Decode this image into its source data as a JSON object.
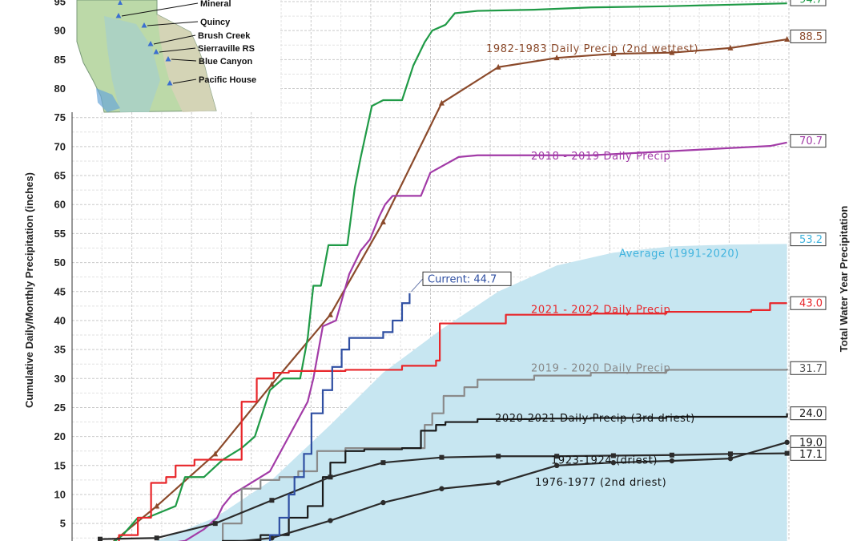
{
  "chart_data": {
    "type": "line",
    "ylabel": "Cumulative Daily/Monthly Precipitation (inches)",
    "ylabel_right": "Total Water Year Precipitation",
    "ylim": [
      2,
      95
    ],
    "xlim": [
      0,
      365
    ],
    "yticks": [
      5,
      10,
      15,
      20,
      25,
      30,
      35,
      40,
      45,
      50,
      55,
      60,
      65,
      70,
      75,
      80,
      85,
      90,
      95
    ],
    "grid": true,
    "average": {
      "label": "Average (1991-2020)",
      "end_value": "53.2",
      "color": "#c7e6f1",
      "label_color": "#3fb3de",
      "x": [
        0,
        30,
        61,
        91,
        122,
        150,
        181,
        211,
        242,
        272,
        303,
        334,
        364
      ],
      "y": [
        0,
        2,
        6,
        12.5,
        22,
        31,
        38.5,
        45,
        49.5,
        51.7,
        52.8,
        53.1,
        53.2
      ]
    },
    "current": {
      "label": "Current: 44.7",
      "value": 44.7,
      "color": "#2f4fa2"
    },
    "series": [
      {
        "name": "1982-1983 Daily Precip (2nd wettest)",
        "end_value": "88.5",
        "color": "#8b4a2b",
        "markers": "triangle",
        "x": [
          0,
          30,
          61,
          91,
          122,
          150,
          181,
          211,
          242,
          272,
          303,
          334,
          364
        ],
        "y": [
          0,
          8,
          17,
          29,
          41,
          57,
          77.5,
          83.7,
          85.3,
          86,
          86.2,
          87,
          88.5
        ]
      },
      {
        "name": "",
        "end_value": "94.7",
        "color": "#1f9a46",
        "markers": "none",
        "x": [
          0,
          12,
          20,
          25,
          40,
          45,
          50,
          55,
          65,
          75,
          82,
          90,
          97,
          106,
          110,
          113,
          117,
          121,
          131,
          135,
          138,
          144,
          150,
          160,
          166,
          172,
          176,
          183,
          188,
          200,
          230,
          260,
          300,
          364
        ],
        "y": [
          0,
          3,
          6,
          6,
          8,
          13,
          13,
          13,
          16,
          18,
          20,
          28,
          30,
          30,
          37,
          46,
          46,
          53,
          53,
          63,
          68,
          77,
          78,
          78,
          84,
          88,
          90,
          91,
          93,
          93.4,
          93.6,
          94,
          94.2,
          94.7
        ]
      },
      {
        "name": "2018 - 2019 Daily Precip",
        "end_value": "70.7",
        "color": "#a23ba7",
        "markers": "none",
        "x": [
          0,
          45,
          55,
          62,
          65,
          70,
          80,
          90,
          100,
          110,
          113,
          118,
          125,
          132,
          138,
          143,
          148,
          151,
          155,
          162,
          170,
          175,
          190,
          200,
          212,
          225,
          240,
          250,
          260,
          355,
          364
        ],
        "y": [
          0,
          2,
          4,
          6,
          8,
          10,
          12,
          14,
          20,
          26,
          30,
          39,
          40,
          48,
          52,
          54,
          58,
          60,
          61.5,
          61.5,
          61.5,
          65.5,
          68.2,
          68.5,
          68.5,
          68.5,
          68.5,
          68.5,
          68.5,
          70.1,
          70.7
        ]
      },
      {
        "name": "2021 - 2022 Daily Precip",
        "end_value": "43.0",
        "color": "#e8262a",
        "markers": "none",
        "x": [
          0,
          10,
          20,
          27,
          35,
          40,
          50,
          55,
          66,
          75,
          83,
          88,
          92,
          100,
          130,
          160,
          178,
          180,
          215,
          260,
          300,
          345,
          355,
          364
        ],
        "y": [
          0,
          3,
          6,
          12,
          13,
          15,
          16,
          16,
          16,
          26,
          30,
          30,
          31,
          31.3,
          31.5,
          32.2,
          33.1,
          39.5,
          41,
          41.2,
          41.5,
          41.8,
          43,
          43
        ],
        "step": true
      },
      {
        "name": "2019 - 2020 Daily Precip",
        "end_value": "31.7",
        "color": "#8a8a8a",
        "markers": "none",
        "x": [
          0,
          40,
          65,
          75,
          85,
          95,
          105,
          115,
          130,
          160,
          172,
          176,
          182,
          193,
          200,
          230,
          260,
          300,
          364
        ],
        "y": [
          0,
          0,
          5,
          11,
          12.5,
          13,
          14,
          17.5,
          18,
          18,
          22,
          24,
          27,
          28.5,
          29.8,
          30.5,
          31,
          31.5,
          31.7
        ],
        "step": true
      },
      {
        "name": "2020-2021 Daily Precip (3rd driest)",
        "end_value": "24.0",
        "color": "#1a1a1a",
        "markers": "none",
        "x": [
          0,
          50,
          65,
          85,
          100,
          110,
          118,
          122,
          130,
          140,
          160,
          170,
          178,
          183,
          200,
          230,
          260,
          300,
          364
        ],
        "y": [
          0,
          0,
          2,
          3,
          6,
          8,
          13,
          15.5,
          17.5,
          17.8,
          18,
          21,
          22,
          22.5,
          23,
          23.1,
          23.2,
          23.4,
          24
        ],
        "step": true
      },
      {
        "name": "1923-1924 (driest)",
        "end_value": "17.1",
        "color": "#2b2b2b",
        "markers": "square",
        "x": [
          0,
          30,
          61,
          91,
          122,
          150,
          181,
          211,
          242,
          272,
          303,
          334,
          364
        ],
        "y": [
          2.3,
          2.5,
          5,
          9,
          13,
          15.5,
          16.4,
          16.6,
          16.6,
          16.7,
          16.8,
          17,
          17.1
        ]
      },
      {
        "name": "1976-1977 (2nd driest)",
        "end_value": "19.0",
        "color": "#2b2b2b",
        "markers": "circle",
        "x": [
          0,
          30,
          61,
          91,
          122,
          150,
          181,
          211,
          242,
          272,
          303,
          334,
          364
        ],
        "y": [
          0,
          0.8,
          1.5,
          2.5,
          5.5,
          8.6,
          11,
          12,
          15,
          15.5,
          15.8,
          16.2,
          19
        ]
      }
    ]
  },
  "inset_map": {
    "stations": [
      "Mineral",
      "Quincy",
      "Brush Creek",
      "Sierraville RS",
      "Blue Canyon",
      "Pacific House"
    ]
  }
}
